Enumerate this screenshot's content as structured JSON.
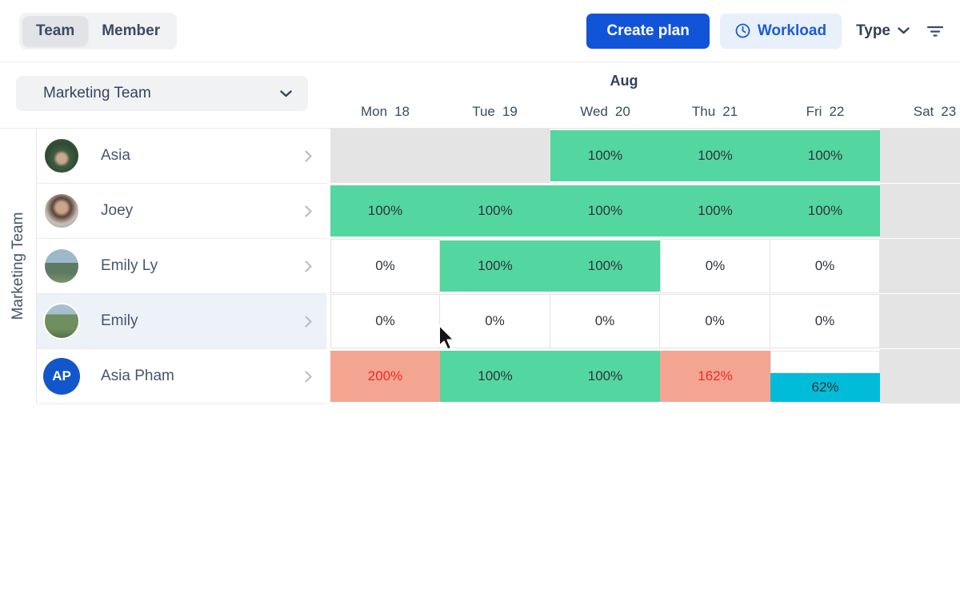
{
  "topbar": {
    "toggle_team": "Team",
    "toggle_member": "Member",
    "create_plan": "Create plan",
    "workload": "Workload",
    "type": "Type"
  },
  "team_selector": {
    "label": "Marketing Team"
  },
  "rail_label": "Marketing Team",
  "calendar": {
    "month": "Aug",
    "days": [
      {
        "name": "Mon",
        "num": "18"
      },
      {
        "name": "Tue",
        "num": "19"
      },
      {
        "name": "Wed",
        "num": "20"
      },
      {
        "name": "Thu",
        "num": "21"
      },
      {
        "name": "Fri",
        "num": "22"
      },
      {
        "name": "Sat",
        "num": "23"
      }
    ]
  },
  "members": [
    {
      "name": "Asia",
      "avatar_kind": "photo",
      "avatar": "forest",
      "highlighted": false
    },
    {
      "name": "Joey",
      "avatar_kind": "photo",
      "avatar": "portrait",
      "highlighted": false
    },
    {
      "name": "Emily Ly",
      "avatar_kind": "photo",
      "avatar": "mountain",
      "highlighted": false
    },
    {
      "name": "Emily",
      "avatar_kind": "photo",
      "avatar": "field",
      "highlighted": true
    },
    {
      "name": "Asia Pham",
      "avatar_kind": "initials",
      "initials": "AP",
      "avatar_color": "#1256cc",
      "highlighted": false
    }
  ],
  "grid_rows": [
    {
      "member": "Asia",
      "cells": [
        {
          "day": "Mon 18",
          "type": "gray",
          "label": ""
        },
        {
          "day": "Tue 19",
          "type": "gray",
          "label": ""
        },
        {
          "day": "Wed 20",
          "type": "green",
          "label": "100%"
        },
        {
          "day": "Thu 21",
          "type": "green",
          "label": "100%"
        },
        {
          "day": "Fri 22",
          "type": "green",
          "label": "100%"
        },
        {
          "day": "Sat 23",
          "type": "gray",
          "label": ""
        }
      ]
    },
    {
      "member": "Joey",
      "cells": [
        {
          "day": "Mon 18",
          "type": "green",
          "label": "100%"
        },
        {
          "day": "Tue 19",
          "type": "green",
          "label": "100%"
        },
        {
          "day": "Wed 20",
          "type": "green",
          "label": "100%"
        },
        {
          "day": "Thu 21",
          "type": "green",
          "label": "100%"
        },
        {
          "day": "Fri 22",
          "type": "green",
          "label": "100%"
        },
        {
          "day": "Sat 23",
          "type": "gray",
          "label": ""
        }
      ]
    },
    {
      "member": "Emily Ly",
      "cells": [
        {
          "day": "Mon 18",
          "type": "white",
          "label": "0%"
        },
        {
          "day": "Tue 19",
          "type": "green",
          "label": "100%"
        },
        {
          "day": "Wed 20",
          "type": "green",
          "label": "100%"
        },
        {
          "day": "Thu 21",
          "type": "white",
          "label": "0%"
        },
        {
          "day": "Fri 22",
          "type": "white",
          "label": "0%"
        },
        {
          "day": "Sat 23",
          "type": "gray",
          "label": ""
        }
      ]
    },
    {
      "member": "Emily",
      "cells": [
        {
          "day": "Mon 18",
          "type": "white",
          "label": "0%"
        },
        {
          "day": "Tue 19",
          "type": "white",
          "label": "0%"
        },
        {
          "day": "Wed 20",
          "type": "white",
          "label": "0%"
        },
        {
          "day": "Thu 21",
          "type": "white",
          "label": "0%"
        },
        {
          "day": "Fri 22",
          "type": "white",
          "label": "0%"
        },
        {
          "day": "Sat 23",
          "type": "gray",
          "label": ""
        }
      ]
    },
    {
      "member": "Asia Pham",
      "cells": [
        {
          "day": "Mon 18",
          "type": "overload",
          "label": "200%"
        },
        {
          "day": "Tue 19",
          "type": "green",
          "label": "100%"
        },
        {
          "day": "Wed 20",
          "type": "green",
          "label": "100%"
        },
        {
          "day": "Thu 21",
          "type": "overload",
          "label": "162%"
        },
        {
          "day": "Fri 22",
          "type": "partial",
          "label": "62%",
          "fill_pct": 62
        },
        {
          "day": "Sat 23",
          "type": "gray",
          "label": ""
        }
      ]
    }
  ],
  "colors": {
    "accent_blue": "#1254d8",
    "green": "#54d6a0",
    "overload_bg": "#f4a592",
    "overload_text": "#e82b2b",
    "partial_cyan": "#00bcd9",
    "empty_gray": "#e4e4e4"
  }
}
